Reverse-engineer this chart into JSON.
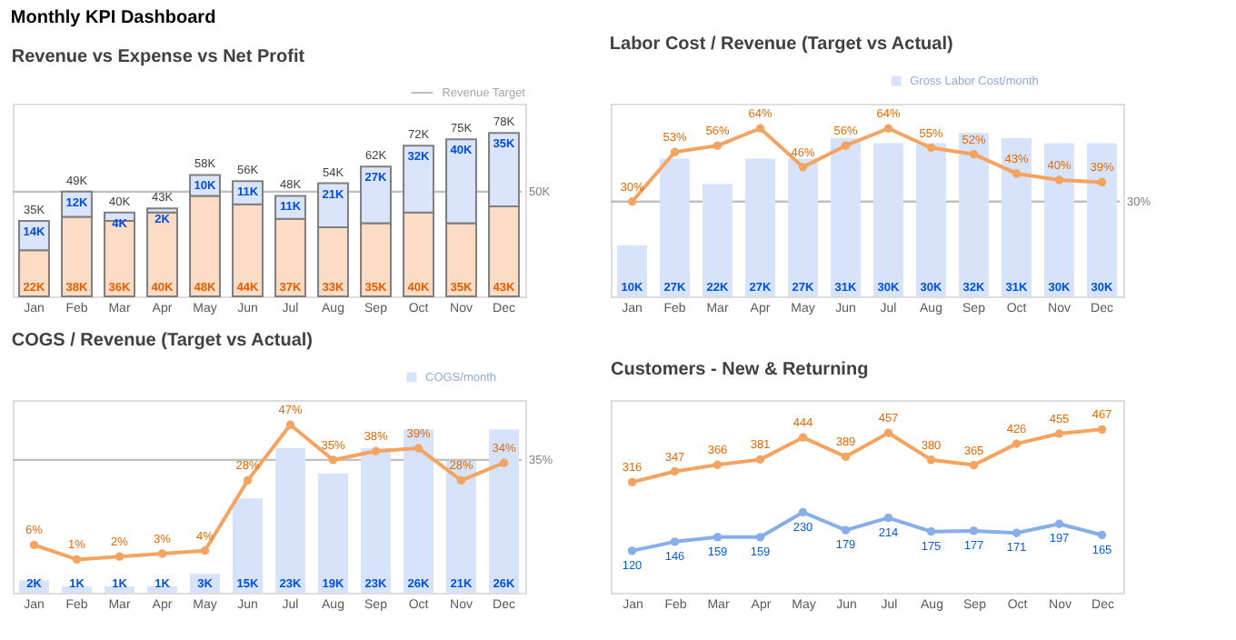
{
  "chart_data": [
    {
      "type": "bar",
      "title": "Revenue vs Expense vs Net Profit",
      "categories": [
        "Jan",
        "Feb",
        "Mar",
        "Apr",
        "May",
        "Jun",
        "Jul",
        "Aug",
        "Sep",
        "Oct",
        "Nov",
        "Dec"
      ],
      "stacked": true,
      "series": [
        {
          "color": "#fcdcc5",
          "values": [
            22,
            38,
            36,
            40,
            48,
            44,
            37,
            33,
            35,
            40,
            35,
            43
          ],
          "value_labels": [
            "22K",
            "38K",
            "36K",
            "40K",
            "48K",
            "44K",
            "37K",
            "33K",
            "35K",
            "40K",
            "35K",
            "43K"
          ]
        },
        {
          "color": "#dae5fb",
          "values": [
            14,
            12,
            4,
            2,
            10,
            11,
            11,
            21,
            27,
            32,
            40,
            35
          ],
          "value_labels": [
            "14K",
            "12K",
            "4K",
            "2K",
            "10K",
            "11K",
            "11K",
            "21K",
            "27K",
            "32K",
            "40K",
            "35K"
          ]
        }
      ],
      "totals": [
        "35K",
        "49K",
        "40K",
        "43K",
        "58K",
        "56K",
        "48K",
        "54K",
        "62K",
        "72K",
        "75K",
        "78K"
      ],
      "ref_lines": [
        {
          "axis": "y",
          "value": 50,
          "label": "50K",
          "color": "#bfbfbf"
        }
      ],
      "annotations": [
        "Monthly KPI Dashboard",
        "Revenue Target"
      ]
    },
    {
      "type": "bar",
      "title": "Labor Cost / Revenue (Target vs Actual)",
      "categories": [
        "Jan",
        "Feb",
        "Mar",
        "Apr",
        "May",
        "Jun",
        "Jul",
        "Aug",
        "Sep",
        "Oct",
        "Nov",
        "Dec"
      ],
      "legend": "top right",
      "marker": "circle",
      "series": [
        {
          "name": "Gross Labor Cost/month",
          "color": "#d6e3fb",
          "values": [
            10,
            27,
            22,
            27,
            27,
            31,
            30,
            30,
            32,
            31,
            30,
            30
          ],
          "value_labels": [
            "10K",
            "27K",
            "22K",
            "27K",
            "27K",
            "31K",
            "30K",
            "30K",
            "32K",
            "31K",
            "30K",
            "30K"
          ]
        },
        {
          "type": "line",
          "axis": "y2",
          "color": "#f4a460",
          "values": [
            30,
            53,
            56,
            64,
            46,
            56,
            64,
            55,
            52,
            43,
            40,
            39
          ],
          "value_labels": [
            "30%",
            "53%",
            "56%",
            "64%",
            "46%",
            "56%",
            "64%",
            "55%",
            "52%",
            "43%",
            "40%",
            "39%"
          ]
        }
      ],
      "ref_lines": [
        {
          "axis": "y2",
          "value": 30,
          "label": "30%",
          "color": "#bfbfbf"
        }
      ]
    },
    {
      "type": "bar",
      "title": "COGS / Revenue (Target vs Actual)",
      "categories": [
        "Jan",
        "Feb",
        "Mar",
        "Apr",
        "May",
        "Jun",
        "Jul",
        "Aug",
        "Sep",
        "Oct",
        "Nov",
        "Dec"
      ],
      "legend": "top right",
      "marker": "circle",
      "series": [
        {
          "name": "COGS/month",
          "color": "#d6e3fb",
          "values": [
            2,
            1,
            1,
            1,
            3,
            15,
            23,
            19,
            23,
            26,
            21,
            26
          ],
          "value_labels": [
            "2K",
            "1K",
            "1K",
            "1K",
            "3K",
            "15K",
            "23K",
            "19K",
            "23K",
            "26K",
            "21K",
            "26K"
          ]
        },
        {
          "type": "line",
          "axis": "y2",
          "color": "#f4a460",
          "values": [
            6,
            1,
            2,
            3,
            4,
            28,
            47,
            35,
            38,
            39,
            28,
            34
          ],
          "value_labels": [
            "6%",
            "1%",
            "2%",
            "3%",
            "4%",
            "28%",
            "47%",
            "35%",
            "38%",
            "39%",
            "28%",
            "34%"
          ]
        }
      ],
      "ref_lines": [
        {
          "axis": "y2",
          "value": 35,
          "label": "35%",
          "color": "#bfbfbf"
        }
      ]
    },
    {
      "type": "line",
      "title": "Customers - New & Returning",
      "categories": [
        "Jan",
        "Feb",
        "Mar",
        "Apr",
        "May",
        "Jun",
        "Jul",
        "Aug",
        "Sep",
        "Oct",
        "Nov",
        "Dec"
      ],
      "marker": "circle",
      "data_labels": true,
      "series": [
        {
          "color": "#f4a460",
          "values": [
            316,
            347,
            366,
            381,
            444,
            389,
            457,
            380,
            365,
            426,
            455,
            467
          ]
        },
        {
          "color": "#86aee8",
          "values": [
            120,
            146,
            159,
            159,
            230,
            179,
            214,
            175,
            177,
            171,
            197,
            165
          ]
        }
      ]
    }
  ]
}
